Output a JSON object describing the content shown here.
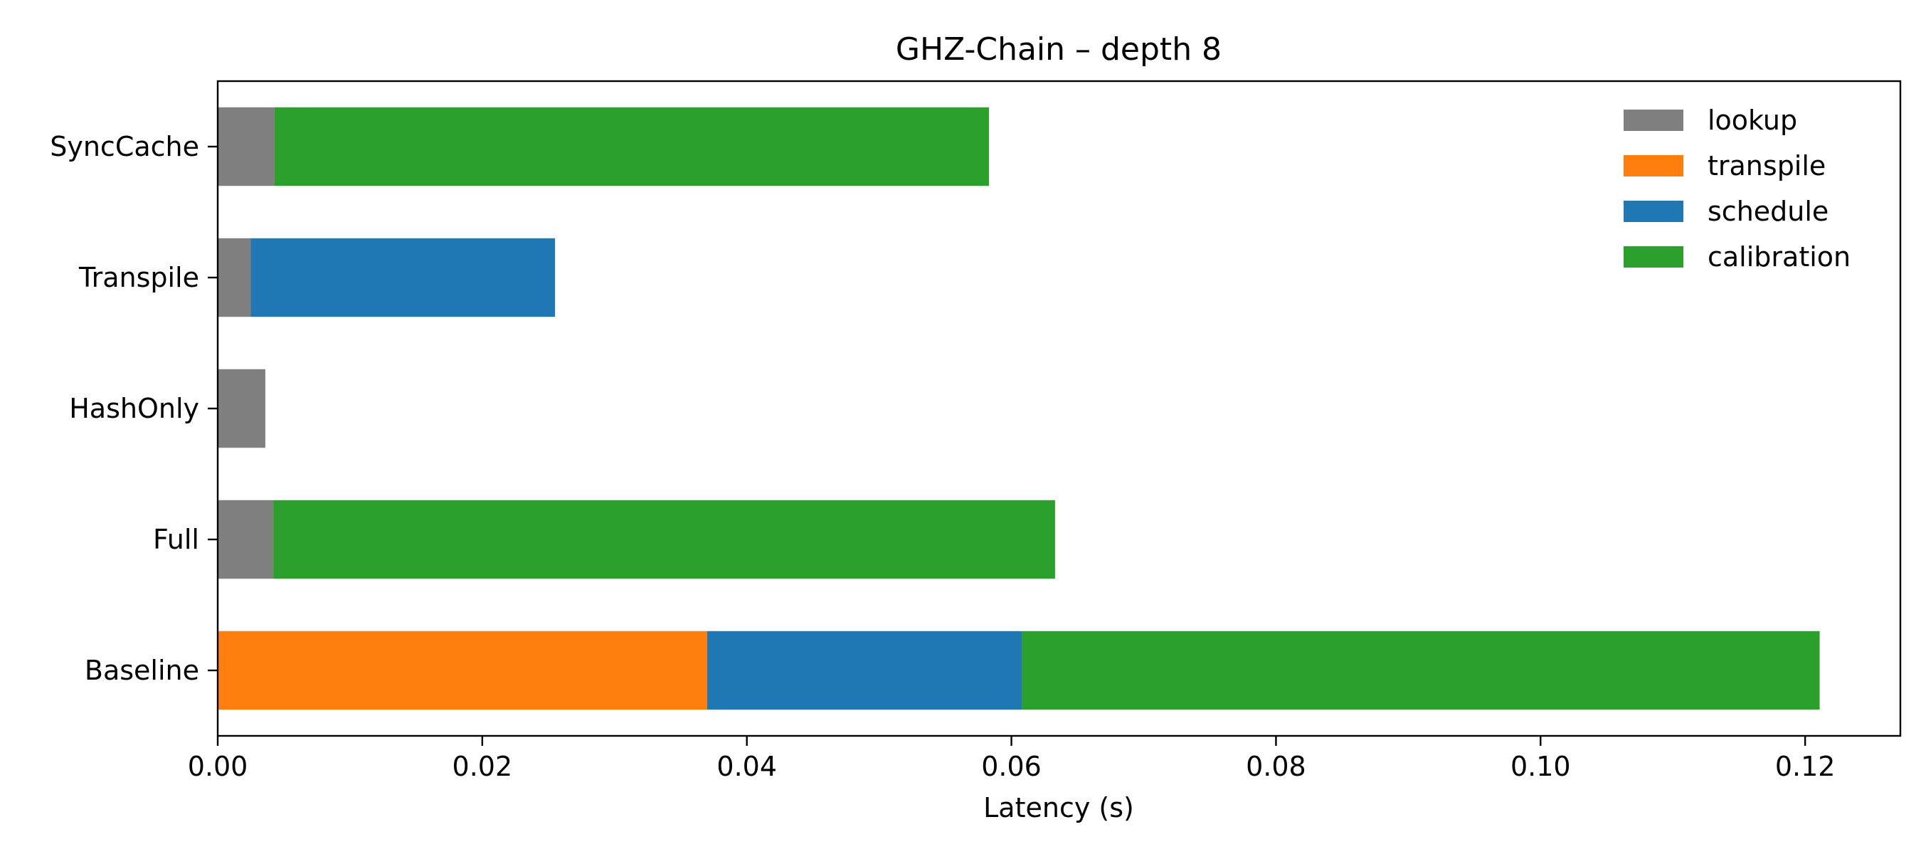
{
  "chart_data": {
    "type": "bar",
    "orientation": "horizontal",
    "stacked": true,
    "title": "GHZ-Chain – depth 8",
    "xlabel": "Latency (s)",
    "ylabel": "",
    "xlim": [
      0,
      0.1272
    ],
    "xticks": [
      "0.00",
      "0.02",
      "0.04",
      "0.06",
      "0.08",
      "0.10",
      "0.12"
    ],
    "categories": [
      "Baseline",
      "Full",
      "HashOnly",
      "Transpile",
      "SyncCache"
    ],
    "series": [
      {
        "name": "lookup",
        "color": "#7f7f7f",
        "values": [
          0.0,
          0.0042,
          0.0036,
          0.0025,
          0.0043
        ]
      },
      {
        "name": "transpile",
        "color": "#ff7f0e",
        "values": [
          0.037,
          0.0,
          0.0,
          0.0,
          0.0
        ]
      },
      {
        "name": "schedule",
        "color": "#1f77b4",
        "values": [
          0.0238,
          0.0,
          0.0,
          0.023,
          0.0
        ]
      },
      {
        "name": "calibration",
        "color": "#2ca02c",
        "values": [
          0.0603,
          0.0591,
          0.0,
          0.0,
          0.054
        ]
      }
    ],
    "grid": false,
    "legend_position": "top-right"
  }
}
